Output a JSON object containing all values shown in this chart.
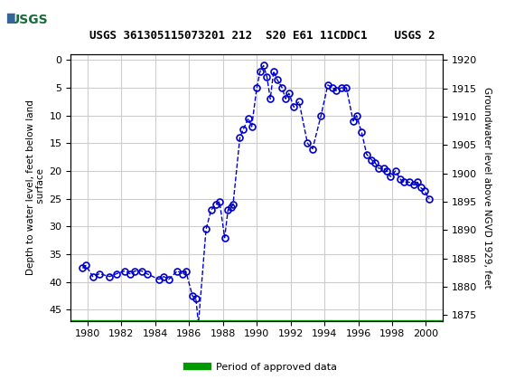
{
  "title": "USGS 361305115073201 212  S20 E61 11CDDC1    USGS 2",
  "ylabel_left": "Depth to water level, feet below land\n surface",
  "ylabel_right": "Groundwater level above NGVD 1929, feet",
  "ylim_left": [
    47,
    -1
  ],
  "ylim_right": [
    1874,
    1921
  ],
  "xlim": [
    1979,
    2001
  ],
  "xticks": [
    1980,
    1982,
    1984,
    1986,
    1988,
    1990,
    1992,
    1994,
    1996,
    1998,
    2000
  ],
  "yticks_left": [
    0,
    5,
    10,
    15,
    20,
    25,
    30,
    35,
    40,
    45
  ],
  "yticks_right": [
    1875,
    1880,
    1885,
    1890,
    1895,
    1900,
    1905,
    1910,
    1915,
    1920
  ],
  "data_x": [
    1979.7,
    1979.9,
    1980.3,
    1980.7,
    1981.3,
    1981.7,
    1982.2,
    1982.5,
    1982.8,
    1983.2,
    1983.5,
    1984.2,
    1984.5,
    1984.8,
    1985.3,
    1985.6,
    1985.8,
    1986.2,
    1986.4,
    1986.55,
    1987.0,
    1987.3,
    1987.6,
    1987.8,
    1988.1,
    1988.3,
    1988.5,
    1988.6,
    1989.0,
    1989.2,
    1989.5,
    1989.7,
    1990.0,
    1990.2,
    1990.4,
    1990.6,
    1990.8,
    1991.0,
    1991.2,
    1991.5,
    1991.7,
    1991.9,
    1992.2,
    1992.5,
    1993.0,
    1993.3,
    1993.8,
    1994.2,
    1994.5,
    1994.7,
    1995.0,
    1995.3,
    1995.7,
    1995.9,
    1996.2,
    1996.5,
    1996.8,
    1997.0,
    1997.2,
    1997.5,
    1997.7,
    1997.9,
    1998.2,
    1998.5,
    1998.7,
    1999.0,
    1999.3,
    1999.5,
    1999.7,
    1999.9,
    2000.2
  ],
  "data_y": [
    37.5,
    37.0,
    39.0,
    38.5,
    39.0,
    38.5,
    38.0,
    38.5,
    38.0,
    38.0,
    38.5,
    39.5,
    39.0,
    39.5,
    38.0,
    38.5,
    38.0,
    42.5,
    43.0,
    47.5,
    30.5,
    27.0,
    26.0,
    25.5,
    32.0,
    27.0,
    26.5,
    26.0,
    14.0,
    12.5,
    10.5,
    12.0,
    5.0,
    2.0,
    1.0,
    3.0,
    7.0,
    2.0,
    3.5,
    5.0,
    7.0,
    6.0,
    8.5,
    7.5,
    15.0,
    16.0,
    10.0,
    4.5,
    5.0,
    5.5,
    5.0,
    5.0,
    11.0,
    10.0,
    13.0,
    17.0,
    18.0,
    18.5,
    19.5,
    19.5,
    20.0,
    21.0,
    20.0,
    21.5,
    22.0,
    22.0,
    22.5,
    22.0,
    23.0,
    23.5,
    25.0
  ],
  "header_bg_color": "#1a6b3a",
  "header_text_color": "#ffffff",
  "plot_bg_color": "#ffffff",
  "grid_color": "#cccccc",
  "line_color": "#0000cc",
  "marker_color": "#0000cc",
  "legend_line_color": "#009900",
  "legend_label": "Period of approved data",
  "bar_y": 47.5
}
